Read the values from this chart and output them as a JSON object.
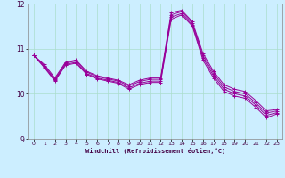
{
  "xlabel": "Windchill (Refroidissement éolien,°C)",
  "background_color": "#cceeff",
  "line_color": "#990099",
  "grid_color": "#aaddcc",
  "xlim": [
    -0.5,
    23.5
  ],
  "ylim": [
    9,
    12
  ],
  "yticks": [
    9,
    10,
    11,
    12
  ],
  "xticks": [
    0,
    1,
    2,
    3,
    4,
    5,
    6,
    7,
    8,
    9,
    10,
    11,
    12,
    13,
    14,
    15,
    16,
    17,
    18,
    19,
    20,
    21,
    22,
    23
  ],
  "series": [
    [
      10.85,
      10.65,
      10.35,
      10.7,
      10.75,
      10.5,
      10.4,
      10.35,
      10.3,
      10.2,
      10.3,
      10.35,
      10.35,
      11.8,
      11.85,
      11.6,
      10.9,
      10.5,
      10.2,
      10.1,
      10.05,
      9.85,
      9.62,
      9.65
    ],
    [
      10.85,
      10.62,
      10.32,
      10.68,
      10.73,
      10.48,
      10.38,
      10.33,
      10.28,
      10.17,
      10.27,
      10.32,
      10.32,
      11.75,
      11.82,
      11.57,
      10.85,
      10.45,
      10.15,
      10.05,
      10.0,
      9.8,
      9.57,
      9.62
    ],
    [
      10.85,
      10.6,
      10.3,
      10.65,
      10.7,
      10.45,
      10.35,
      10.3,
      10.25,
      10.13,
      10.23,
      10.28,
      10.28,
      11.7,
      11.78,
      11.53,
      10.8,
      10.4,
      10.1,
      10.0,
      9.95,
      9.75,
      9.52,
      9.58
    ],
    [
      10.85,
      10.58,
      10.28,
      10.63,
      10.68,
      10.43,
      10.33,
      10.28,
      10.23,
      10.1,
      10.2,
      10.25,
      10.25,
      11.65,
      11.75,
      11.5,
      10.75,
      10.35,
      10.05,
      9.95,
      9.9,
      9.7,
      9.47,
      9.55
    ]
  ]
}
